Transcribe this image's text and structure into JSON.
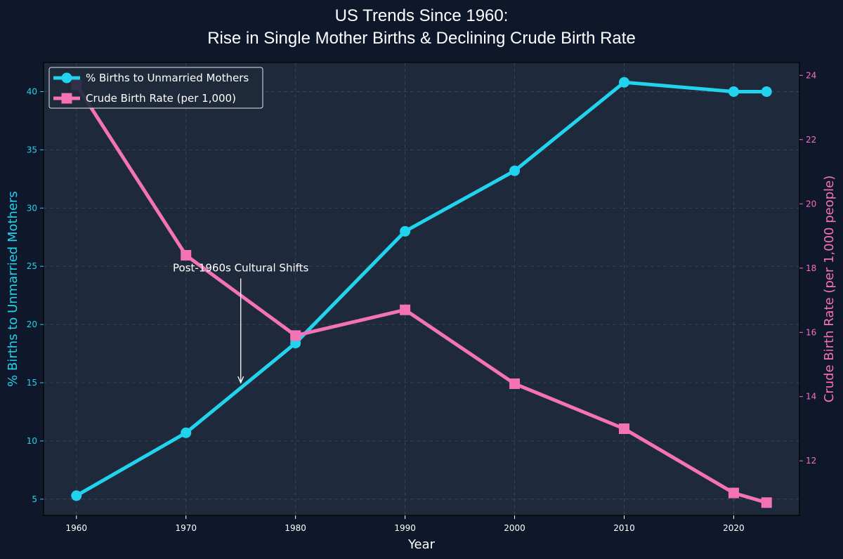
{
  "chart_data": {
    "type": "line",
    "title": "US Trends Since 1960:",
    "subtitle": "Rise in Single Mother Births & Declining Crude Birth Rate",
    "xlabel": "Year",
    "ylabel_left": "% Births to Unmarried Mothers",
    "ylabel_right": "Crude Birth Rate (per 1,000 people)",
    "x": [
      1960,
      1970,
      1980,
      1990,
      2000,
      2010,
      2020,
      2023
    ],
    "xlim": [
      1957,
      2026
    ],
    "x_ticks": [
      1960,
      1970,
      1980,
      1990,
      2000,
      2010,
      2020
    ],
    "ylim_left": [
      3.6,
      42.5
    ],
    "y_ticks_left": [
      5,
      10,
      15,
      20,
      25,
      30,
      35,
      40
    ],
    "ylim_right": [
      10.3,
      24.4
    ],
    "y_ticks_right": [
      12,
      14,
      16,
      18,
      20,
      22,
      24
    ],
    "grid": true,
    "legend_position": "top-left",
    "series": [
      {
        "name": "% Births to Unmarried Mothers",
        "axis": "left",
        "marker": "circle",
        "color": "#22d3ee",
        "values": [
          5.3,
          10.7,
          18.4,
          28.0,
          33.2,
          40.8,
          40.0,
          40.0
        ]
      },
      {
        "name": "Crude Birth Rate (per 1,000)",
        "axis": "right",
        "marker": "square",
        "color": "#f472b6",
        "values": [
          23.7,
          18.4,
          15.9,
          16.7,
          14.4,
          13.0,
          11.0,
          10.7
        ]
      }
    ],
    "annotations": [
      {
        "text": "Post-1960s Cultural Shifts",
        "point": {
          "x": 1975,
          "y": 15
        },
        "text_at": {
          "x": 1975,
          "y": 24.8
        },
        "axis": "left"
      }
    ],
    "colors": {
      "background": "#0f172a",
      "plot_background": "#1e293b",
      "grid": "#475569"
    }
  }
}
